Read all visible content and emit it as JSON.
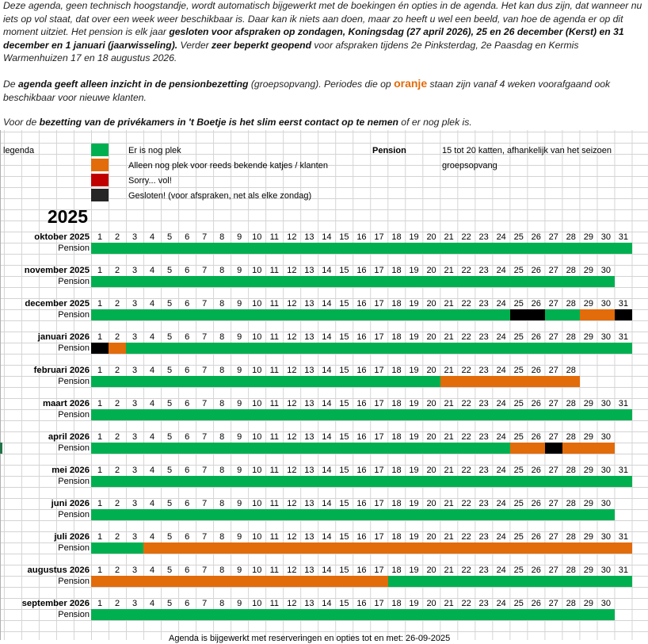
{
  "intro": {
    "p1": [
      {
        "t": "Deze agenda, geen technisch hoogstandje, wordt automatisch bijgewerkt met de boekingen én opties in de agenda. Het kan dus zijn, dat wanneer nu iets op vol staat, dat over een week weer beschikbaar is. Daar kan ik niets aan doen, maar zo heeft u wel een beeld, van hoe de agenda er op dit moment uitziet. Het pension is elk jaar ",
        "b": false
      },
      {
        "t": "gesloten voor afspraken op zondagen, Koningsdag (27 april 2026), 25 en 26 december (Kerst) en 31 december en 1 januari (jaarwisseling).",
        "b": true
      },
      {
        "t": " Verder ",
        "b": false
      },
      {
        "t": "zeer beperkt geopend",
        "b": true
      },
      {
        "t": " voor afspraken tijdens 2e Pinksterdag, 2e Paasdag en Kermis Warmenhuizen 17 en 18 augustus 2026.",
        "b": false
      }
    ],
    "p2": [
      {
        "t": "De ",
        "b": false
      },
      {
        "t": "agenda geeft alleen inzicht in de pensionbezetting",
        "b": true
      },
      {
        "t": " (groepsopvang). Periodes die op ",
        "b": false
      },
      {
        "t": "oranje",
        "o": true
      },
      {
        "t": " staan zijn vanaf 4 weken voorafgaand ook beschikbaar voor nieuwe klanten.",
        "b": false
      }
    ],
    "p3": [
      {
        "t": "Voor de ",
        "b": false
      },
      {
        "t": "bezetting van de privékamers in 't Boetje is het slim eerst contact op te nemen",
        "b": true
      },
      {
        "t": " of er nog plek is.",
        "b": false
      }
    ]
  },
  "legend": {
    "title": "legenda",
    "items": [
      {
        "color": "green",
        "label": "Er is nog plek"
      },
      {
        "color": "orange",
        "label": "Alleen nog plek voor reeds bekende katjes / klanten"
      },
      {
        "color": "red",
        "label": "Sorry... vol!"
      },
      {
        "color": "black",
        "label": "Gesloten! (voor afspraken, net als elke zondag)"
      }
    ],
    "pension_label": "Pension",
    "pension_desc": "15 tot 20 katten, afhankelijk van het seizoen",
    "pension_type": "groepsopvang"
  },
  "colors": {
    "green": "#00b050",
    "orange": "#e26b0a",
    "red": "#c00000",
    "black": "#000000"
  },
  "year": "2025",
  "row_label": "Pension",
  "months": [
    {
      "name": "oktober 2025",
      "days": 31,
      "segments": [
        {
          "from": 1,
          "to": 31,
          "color": "green"
        }
      ]
    },
    {
      "name": "november 2025",
      "days": 30,
      "segments": [
        {
          "from": 1,
          "to": 30,
          "color": "green"
        }
      ]
    },
    {
      "name": "december 2025",
      "days": 31,
      "segments": [
        {
          "from": 1,
          "to": 24,
          "color": "green"
        },
        {
          "from": 25,
          "to": 26,
          "color": "black"
        },
        {
          "from": 27,
          "to": 28,
          "color": "green"
        },
        {
          "from": 29,
          "to": 30,
          "color": "orange"
        },
        {
          "from": 31,
          "to": 31,
          "color": "black"
        }
      ]
    },
    {
      "name": "januari 2026",
      "days": 31,
      "segments": [
        {
          "from": 1,
          "to": 1,
          "color": "black"
        },
        {
          "from": 2,
          "to": 2,
          "color": "orange"
        },
        {
          "from": 3,
          "to": 31,
          "color": "green"
        }
      ]
    },
    {
      "name": "februari 2026",
      "days": 28,
      "segments": [
        {
          "from": 1,
          "to": 20,
          "color": "green"
        },
        {
          "from": 21,
          "to": 28,
          "color": "orange"
        }
      ]
    },
    {
      "name": "maart 2026",
      "days": 31,
      "segments": [
        {
          "from": 1,
          "to": 31,
          "color": "green"
        }
      ]
    },
    {
      "name": "april 2026",
      "days": 30,
      "segments": [
        {
          "from": 1,
          "to": 24,
          "color": "green"
        },
        {
          "from": 25,
          "to": 26,
          "color": "orange"
        },
        {
          "from": 27,
          "to": 27,
          "color": "black"
        },
        {
          "from": 28,
          "to": 30,
          "color": "orange"
        }
      ]
    },
    {
      "name": "mei 2026",
      "days": 31,
      "segments": [
        {
          "from": 1,
          "to": 31,
          "color": "green"
        }
      ]
    },
    {
      "name": "juni 2026",
      "days": 30,
      "segments": [
        {
          "from": 1,
          "to": 30,
          "color": "green"
        }
      ]
    },
    {
      "name": "juli 2026",
      "days": 31,
      "segments": [
        {
          "from": 1,
          "to": 3,
          "color": "green"
        },
        {
          "from": 4,
          "to": 31,
          "color": "orange"
        }
      ]
    },
    {
      "name": "augustus 2026",
      "days": 31,
      "segments": [
        {
          "from": 1,
          "to": 17,
          "color": "orange"
        },
        {
          "from": 18,
          "to": 31,
          "color": "green"
        }
      ]
    },
    {
      "name": "september 2026",
      "days": 30,
      "segments": [
        {
          "from": 1,
          "to": 30,
          "color": "green"
        }
      ]
    }
  ],
  "footer": "Agenda is bijgewerkt met reserveringen en opties tot en met: 26-09-2025"
}
